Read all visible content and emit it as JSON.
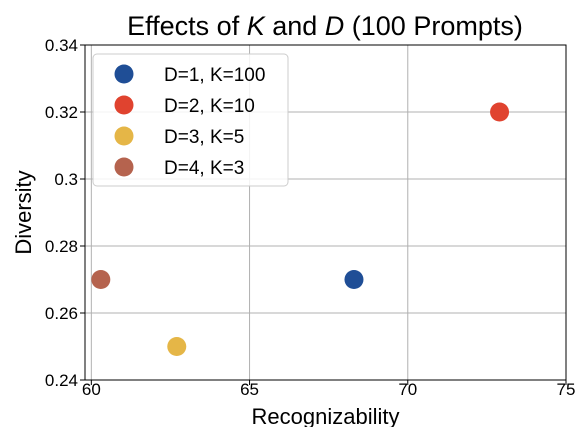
{
  "chart_data": {
    "type": "scatter",
    "title": {
      "prefix": "Effects of ",
      "var1": "K",
      "middle": " and ",
      "var2": "D",
      "suffix": " (100 Prompts)"
    },
    "xlabel": "Recognizability",
    "ylabel": "Diversity",
    "xlim": [
      59.8,
      75
    ],
    "ylim": [
      0.24,
      0.34
    ],
    "x_ticks": [
      60,
      65,
      70,
      75
    ],
    "y_ticks": [
      0.24,
      0.26,
      0.28,
      0.3,
      0.32,
      0.34
    ],
    "y_tick_labels": [
      "0.24",
      "0.26",
      "0.28",
      "0.3",
      "0.32",
      "0.34"
    ],
    "grid": true,
    "legend_position": "top-left",
    "series": [
      {
        "name": "D=1, K=100",
        "color": "#1f4e96",
        "points": [
          {
            "x": 68.3,
            "y": 0.27
          }
        ]
      },
      {
        "name": "D=2, K=10",
        "color": "#e0432f",
        "points": [
          {
            "x": 72.9,
            "y": 0.32
          }
        ]
      },
      {
        "name": "D=3, K=5",
        "color": "#e5b647",
        "points": [
          {
            "x": 62.7,
            "y": 0.25
          }
        ]
      },
      {
        "name": "D=4, K=3",
        "color": "#b5634e",
        "points": [
          {
            "x": 60.3,
            "y": 0.27
          }
        ]
      }
    ]
  }
}
